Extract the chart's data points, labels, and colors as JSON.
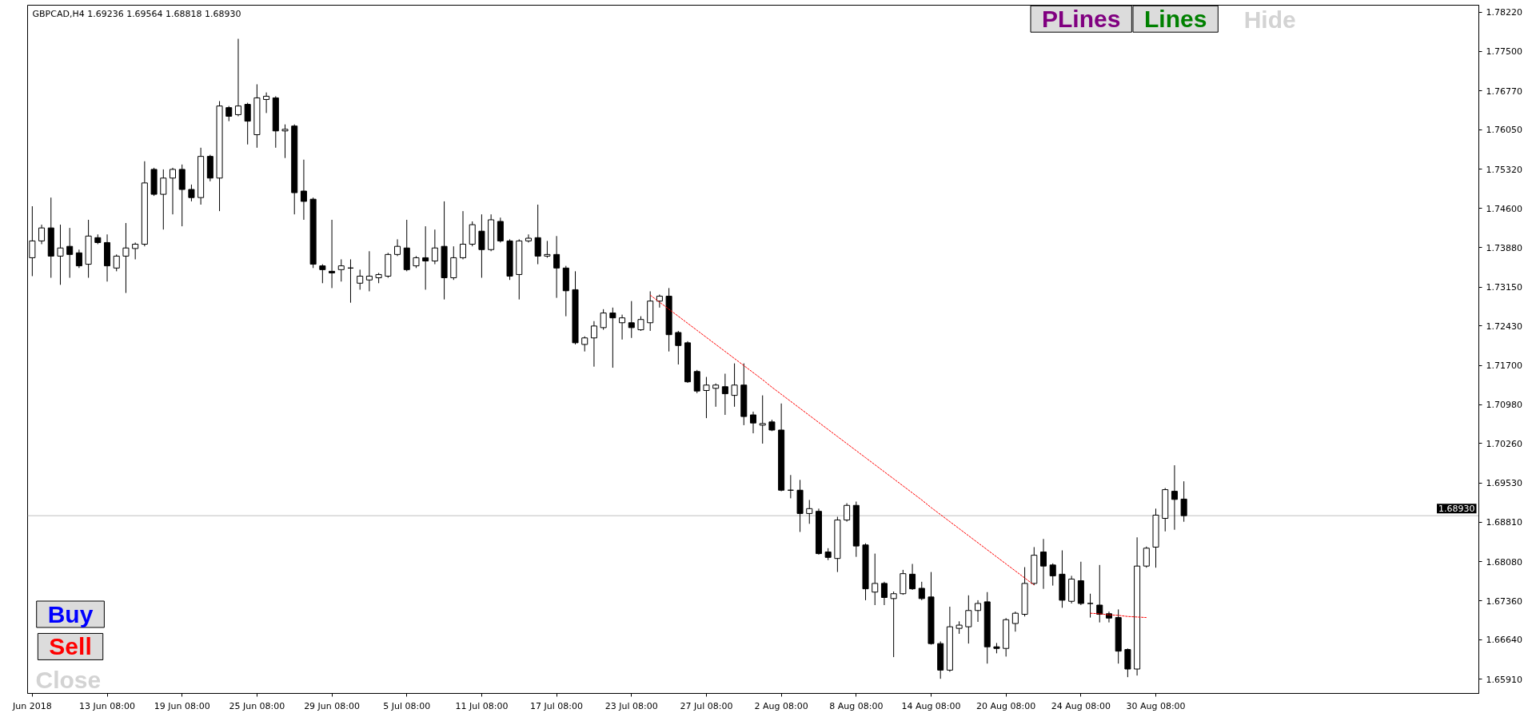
{
  "chart_data": {
    "type": "candlestick",
    "title": "GBPCAD,H4 1.69236 1.69564 1.68818 1.68930",
    "color": "#000000",
    "categories": [
      "Jun 2018",
      null,
      null,
      null,
      null,
      null,
      null,
      null,
      "13 Jun 08:00",
      null,
      null,
      null,
      null,
      null,
      null,
      null,
      "19 Jun 08:00",
      null,
      null,
      null,
      null,
      null,
      null,
      null,
      "25 Jun 08:00",
      null,
      null,
      null,
      null,
      null,
      null,
      null,
      "29 Jun 08:00",
      null,
      null,
      null,
      null,
      null,
      null,
      null,
      "5 Jul 08:00",
      null,
      null,
      null,
      null,
      null,
      null,
      null,
      "11 Jul 08:00",
      null,
      null,
      null,
      null,
      null,
      null,
      null,
      "17 Jul 08:00",
      null,
      null,
      null,
      null,
      null,
      null,
      null,
      "23 Jul 08:00",
      null,
      null,
      null,
      null,
      null,
      null,
      null,
      "27 Jul 08:00",
      null,
      null,
      null,
      null,
      null,
      null,
      null,
      "2 Aug 08:00",
      null,
      null,
      null,
      null,
      null,
      null,
      null,
      "8 Aug 08:00",
      null,
      null,
      null,
      null,
      null,
      null,
      null,
      "14 Aug 08:00",
      null,
      null,
      null,
      null,
      null,
      null,
      null,
      "20 Aug 08:00",
      null,
      null,
      null,
      null,
      null,
      null,
      null,
      "24 Aug 08:00",
      null,
      null,
      null,
      null,
      null,
      null,
      null,
      "30 Aug 08:00",
      null,
      null,
      null,
      null,
      null,
      null,
      null,
      null,
      null,
      null,
      null,
      null,
      null,
      null,
      null,
      null,
      null,
      null,
      null,
      null,
      null,
      null,
      null,
      null,
      null,
      null,
      null,
      null,
      null,
      null,
      null,
      null,
      null,
      null
    ],
    "ohlc": [
      [
        1.7369,
        1.7464,
        1.7335,
        1.74
      ],
      [
        1.74,
        1.743,
        1.7394,
        1.7424
      ],
      [
        1.7424,
        1.748,
        1.7332,
        1.7372
      ],
      [
        1.7372,
        1.743,
        1.7319,
        1.7387
      ],
      [
        1.739,
        1.7424,
        1.7332,
        1.7375
      ],
      [
        1.7378,
        1.7384,
        1.735,
        1.7354
      ],
      [
        1.7357,
        1.7439,
        1.7332,
        1.7409
      ],
      [
        1.7406,
        1.7412,
        1.7394,
        1.7397
      ],
      [
        1.7397,
        1.7412,
        1.7325,
        1.7354
      ],
      [
        1.735,
        1.7375,
        1.7344,
        1.7372
      ],
      [
        1.7372,
        1.7433,
        1.7304,
        1.7387
      ],
      [
        1.7386,
        1.7397,
        1.7366,
        1.7394
      ],
      [
        1.7394,
        1.7547,
        1.739,
        1.7507
      ],
      [
        1.7532,
        1.7535,
        1.7483,
        1.7486
      ],
      [
        1.7486,
        1.7532,
        1.7421,
        1.7516
      ],
      [
        1.7516,
        1.7535,
        1.7449,
        1.7532
      ],
      [
        1.7532,
        1.7541,
        1.7427,
        1.7495
      ],
      [
        1.7495,
        1.7504,
        1.7473,
        1.748
      ],
      [
        1.748,
        1.7572,
        1.7467,
        1.7556
      ],
      [
        1.7556,
        1.7559,
        1.751,
        1.7516
      ],
      [
        1.7516,
        1.7658,
        1.7455,
        1.7649
      ],
      [
        1.7646,
        1.7649,
        1.7621,
        1.763
      ],
      [
        1.7633,
        1.7773,
        1.763,
        1.7649
      ],
      [
        1.7652,
        1.7655,
        1.7578,
        1.7621
      ],
      [
        1.7596,
        1.7689,
        1.7572,
        1.7664
      ],
      [
        1.7661,
        1.7674,
        1.7636,
        1.7667
      ],
      [
        1.7664,
        1.7667,
        1.7572,
        1.7603
      ],
      [
        1.7603,
        1.7615,
        1.7553,
        1.7606
      ],
      [
        1.7612,
        1.7615,
        1.7449,
        1.7489
      ],
      [
        1.7492,
        1.755,
        1.7439,
        1.7473
      ],
      [
        1.7477,
        1.748,
        1.735,
        1.7357
      ],
      [
        1.7354,
        1.7357,
        1.7322,
        1.7347
      ],
      [
        1.7344,
        1.7439,
        1.7313,
        1.7341
      ],
      [
        1.7347,
        1.7366,
        1.7325,
        1.7354
      ],
      [
        1.735,
        1.7366,
        1.7286,
        1.735
      ],
      [
        1.7322,
        1.7347,
        1.731,
        1.7335
      ],
      [
        1.7328,
        1.7381,
        1.7307,
        1.7335
      ],
      [
        1.7332,
        1.7341,
        1.7322,
        1.7338
      ],
      [
        1.7335,
        1.7378,
        1.7332,
        1.7375
      ],
      [
        1.7375,
        1.7403,
        1.7372,
        1.739
      ],
      [
        1.7387,
        1.7439,
        1.7344,
        1.7347
      ],
      [
        1.7354,
        1.7372,
        1.735,
        1.7369
      ],
      [
        1.7369,
        1.7427,
        1.731,
        1.7363
      ],
      [
        1.7363,
        1.7421,
        1.7357,
        1.7387
      ],
      [
        1.739,
        1.7473,
        1.7292,
        1.7332
      ],
      [
        1.7332,
        1.739,
        1.7328,
        1.7369
      ],
      [
        1.7369,
        1.7455,
        1.7366,
        1.7394
      ],
      [
        1.7394,
        1.7436,
        1.739,
        1.743
      ],
      [
        1.7418,
        1.7449,
        1.7332,
        1.7384
      ],
      [
        1.7384,
        1.7449,
        1.7381,
        1.7439
      ],
      [
        1.7436,
        1.7443,
        1.7397,
        1.74
      ],
      [
        1.74,
        1.7403,
        1.7328,
        1.7335
      ],
      [
        1.7338,
        1.7403,
        1.7292,
        1.74
      ],
      [
        1.74,
        1.7412,
        1.7397,
        1.7405
      ],
      [
        1.7406,
        1.7467,
        1.7357,
        1.7372
      ],
      [
        1.7372,
        1.74,
        1.7369,
        1.7375
      ],
      [
        1.7375,
        1.7409,
        1.7295,
        1.735
      ],
      [
        1.735,
        1.7354,
        1.7261,
        1.7308
      ],
      [
        1.731,
        1.7344,
        1.7209,
        1.7212
      ],
      [
        1.7209,
        1.7224,
        1.7196,
        1.7221
      ],
      [
        1.7221,
        1.7252,
        1.7168,
        1.7243
      ],
      [
        1.724,
        1.7274,
        1.7236,
        1.7267
      ],
      [
        1.7267,
        1.7277,
        1.7166,
        1.7258
      ],
      [
        1.7249,
        1.7264,
        1.7218,
        1.7258
      ],
      [
        1.7249,
        1.7289,
        1.7221,
        1.724
      ],
      [
        1.7236,
        1.7261,
        1.7234,
        1.7255
      ],
      [
        1.7249,
        1.7307,
        1.7234,
        1.7289
      ],
      [
        1.7289,
        1.7301,
        1.7277,
        1.7298
      ],
      [
        1.7298,
        1.7313,
        1.7196,
        1.7227
      ],
      [
        1.7231,
        1.7234,
        1.7172,
        1.7207
      ],
      [
        1.7212,
        1.7215,
        1.7138,
        1.714
      ],
      [
        1.7159,
        1.7162,
        1.7119,
        1.7123
      ],
      [
        1.7124,
        1.7149,
        1.7073,
        1.7134
      ],
      [
        1.7128,
        1.7137,
        1.7094,
        1.7134
      ],
      [
        1.7131,
        1.7155,
        1.7079,
        1.7118
      ],
      [
        1.7115,
        1.7174,
        1.7094,
        1.7134
      ],
      [
        1.7134,
        1.7174,
        1.706,
        1.7076
      ],
      [
        1.7079,
        1.7085,
        1.7045,
        1.7064
      ],
      [
        1.706,
        1.7115,
        1.7026,
        1.7063
      ],
      [
        1.7066,
        1.707,
        1.7049,
        1.7051
      ],
      [
        1.7051,
        1.71,
        1.6938,
        1.694
      ],
      [
        1.694,
        1.6968,
        1.6925,
        1.694
      ],
      [
        1.694,
        1.6959,
        1.6863,
        1.6897
      ],
      [
        1.6897,
        1.6922,
        1.6878,
        1.6906
      ],
      [
        1.6901,
        1.6906,
        1.6821,
        1.6823
      ],
      [
        1.6826,
        1.6833,
        1.6811,
        1.6816
      ],
      [
        1.6814,
        1.6891,
        1.6789,
        1.6885
      ],
      [
        1.6885,
        1.6916,
        1.6882,
        1.6912
      ],
      [
        1.6912,
        1.6919,
        1.6817,
        1.6837
      ],
      [
        1.6839,
        1.6842,
        1.6737,
        1.6758
      ],
      [
        1.6752,
        1.6823,
        1.6728,
        1.6768
      ],
      [
        1.6768,
        1.6771,
        1.6728,
        1.6742
      ],
      [
        1.674,
        1.6753,
        1.6632,
        1.6749
      ],
      [
        1.6749,
        1.6793,
        1.6747,
        1.6786
      ],
      [
        1.6785,
        1.6804,
        1.6756,
        1.6758
      ],
      [
        1.6759,
        1.6771,
        1.6737,
        1.674
      ],
      [
        1.6743,
        1.6789,
        1.6655,
        1.6657
      ],
      [
        1.6657,
        1.6661,
        1.6592,
        1.6608
      ],
      [
        1.6608,
        1.6725,
        1.6605,
        1.6688
      ],
      [
        1.6685,
        1.6698,
        1.6675,
        1.6691
      ],
      [
        1.6688,
        1.6746,
        1.6657,
        1.6718
      ],
      [
        1.6718,
        1.6737,
        1.6697,
        1.6731
      ],
      [
        1.6734,
        1.6752,
        1.662,
        1.6651
      ],
      [
        1.6651,
        1.6658,
        1.6639,
        1.6648
      ],
      [
        1.6648,
        1.6704,
        1.6633,
        1.6701
      ],
      [
        1.6694,
        1.6716,
        1.6679,
        1.6713
      ],
      [
        1.6711,
        1.6798,
        1.6707,
        1.6768
      ],
      [
        1.6768,
        1.6835,
        1.6765,
        1.682
      ],
      [
        1.6826,
        1.685,
        1.6758,
        1.68
      ],
      [
        1.6802,
        1.6805,
        1.6764,
        1.6782
      ],
      [
        1.6785,
        1.6829,
        1.6723,
        1.6737
      ],
      [
        1.6735,
        1.6782,
        1.6731,
        1.6776
      ],
      [
        1.6773,
        1.6808,
        1.6728,
        1.6731
      ],
      [
        1.6731,
        1.6749,
        1.6705,
        1.6731
      ],
      [
        1.6728,
        1.6802,
        1.6696,
        1.6711
      ],
      [
        1.6712,
        1.6716,
        1.6696,
        1.6704
      ],
      [
        1.6705,
        1.672,
        1.662,
        1.6643
      ],
      [
        1.6646,
        1.6648,
        1.6595,
        1.661
      ],
      [
        1.661,
        1.6853,
        1.6598,
        1.68
      ],
      [
        1.68,
        1.6836,
        1.6797,
        1.6833
      ],
      [
        1.6835,
        1.6906,
        1.6797,
        1.6894
      ],
      [
        1.6888,
        1.6944,
        1.6864,
        1.6941
      ],
      [
        1.6938,
        1.6986,
        1.6867,
        1.6923
      ],
      [
        1.69236,
        1.69564,
        1.68818,
        1.6893
      ],
      null,
      null,
      null,
      null,
      null,
      null,
      null,
      null,
      null,
      null,
      null,
      null,
      null,
      null,
      null,
      null,
      null,
      null,
      null,
      null,
      null,
      null,
      null,
      null,
      null,
      null,
      null,
      null,
      null,
      null,
      null
    ],
    "series": [
      {
        "type": "line",
        "color": "#ff0000",
        "line_style": "dashed",
        "values": [
          null,
          null,
          null,
          null,
          null,
          null,
          null,
          null,
          null,
          null,
          null,
          null,
          null,
          null,
          null,
          null,
          null,
          null,
          null,
          null,
          null,
          null,
          null,
          null,
          null,
          null,
          null,
          null,
          null,
          null,
          null,
          null,
          null,
          null,
          null,
          null,
          null,
          null,
          null,
          null,
          null,
          null,
          null,
          null,
          null,
          null,
          null,
          null,
          null,
          null,
          null,
          null,
          null,
          null,
          null,
          null,
          null,
          null,
          null,
          null,
          null,
          null,
          null,
          null,
          null,
          null,
          1.73,
          1.7287,
          1.7274,
          1.7261,
          1.7248,
          1.7235,
          1.7222,
          1.7209,
          1.7196,
          1.7183,
          1.717,
          1.7157,
          1.7144,
          1.713,
          1.7117,
          1.7104,
          1.7091,
          1.7078,
          1.7065,
          1.7052,
          1.7039,
          1.7026,
          1.7013,
          1.7,
          1.6987,
          1.6974,
          1.6961,
          1.6948,
          1.6935,
          1.6922,
          1.6908,
          1.6895,
          1.6882,
          1.6869,
          1.6856,
          1.6843,
          1.683,
          1.6817,
          1.6804,
          1.6791,
          1.6778,
          1.6765,
          null,
          null,
          null,
          null,
          null,
          null,
          null,
          null,
          null,
          null,
          null,
          null,
          null,
          null,
          null,
          null,
          null,
          null,
          null,
          null,
          null,
          null,
          null,
          null,
          null,
          null,
          null,
          null,
          null,
          null,
          null,
          null,
          null,
          null,
          null,
          null,
          null,
          null,
          null,
          null,
          null,
          null,
          null,
          null,
          null,
          null,
          null
        ]
      },
      {
        "type": "line",
        "color": "#ff0000",
        "line_style": "dashed",
        "values": [
          null,
          null,
          null,
          null,
          null,
          null,
          null,
          null,
          null,
          null,
          null,
          null,
          null,
          null,
          null,
          null,
          null,
          null,
          null,
          null,
          null,
          null,
          null,
          null,
          null,
          null,
          null,
          null,
          null,
          null,
          null,
          null,
          null,
          null,
          null,
          null,
          null,
          null,
          null,
          null,
          null,
          null,
          null,
          null,
          null,
          null,
          null,
          null,
          null,
          null,
          null,
          null,
          null,
          null,
          null,
          null,
          null,
          null,
          null,
          null,
          null,
          null,
          null,
          null,
          null,
          null,
          null,
          null,
          null,
          null,
          null,
          null,
          null,
          null,
          null,
          null,
          null,
          null,
          null,
          null,
          null,
          null,
          null,
          null,
          null,
          null,
          null,
          null,
          null,
          null,
          null,
          null,
          null,
          null,
          null,
          null,
          null,
          null,
          null,
          null,
          null,
          null,
          null,
          null,
          null,
          null,
          null,
          null,
          null,
          null,
          null,
          null,
          null,
          1.6713,
          1.6712,
          1.671,
          1.6709,
          1.6707,
          1.6706,
          1.6705,
          null,
          null,
          null,
          null,
          null,
          null,
          null,
          null,
          null,
          null,
          null,
          null,
          null,
          null,
          null,
          null,
          null,
          null,
          null,
          null,
          null,
          null,
          null,
          null,
          null,
          null,
          null,
          null,
          null,
          null,
          null,
          null,
          null,
          null,
          null
        ]
      }
    ],
    "ylim": [
      1.6565,
      1.7835
    ],
    "yticks": [
      {
        "value": 1.7822,
        "label": "1.78220"
      },
      {
        "value": 1.775,
        "label": "1.77500"
      },
      {
        "value": 1.7677,
        "label": "1.76770"
      },
      {
        "value": 1.7605,
        "label": "1.76050"
      },
      {
        "value": 1.7532,
        "label": "1.75320"
      },
      {
        "value": 1.746,
        "label": "1.74600"
      },
      {
        "value": 1.7388,
        "label": "1.73880"
      },
      {
        "value": 1.7315,
        "label": "1.73150"
      },
      {
        "value": 1.7243,
        "label": "1.72430"
      },
      {
        "value": 1.717,
        "label": "1.71700"
      },
      {
        "value": 1.7098,
        "label": "1.70980"
      },
      {
        "value": 1.7026,
        "label": "1.70260"
      },
      {
        "value": 1.6953,
        "label": "1.69530"
      },
      {
        "value": 1.6881,
        "label": "1.68810"
      },
      {
        "value": 1.6808,
        "label": "1.68080"
      },
      {
        "value": 1.6736,
        "label": "1.67360"
      },
      {
        "value": 1.6664,
        "label": "1.66640"
      },
      {
        "value": 1.6591,
        "label": "1.65910"
      }
    ],
    "ref_lines": [
      {
        "axis": "y",
        "value": 1.6893,
        "label": "1.68930",
        "color": "#c0c0c0"
      }
    ],
    "annotations": [
      "PLines",
      "Lines",
      "Hide",
      "Buy",
      "Sell",
      "Close"
    ]
  }
}
